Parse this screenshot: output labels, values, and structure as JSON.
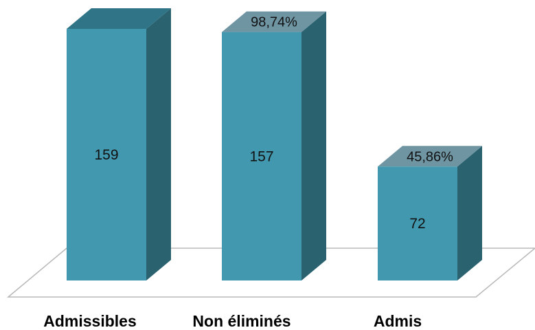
{
  "chart_data": {
    "type": "bar",
    "style": "3d-column",
    "categories": [
      "Admissibles",
      "Non éliminés",
      "Admis"
    ],
    "values": [
      159,
      157,
      72
    ],
    "percent_labels": [
      "",
      "98,74%",
      "45,86%"
    ],
    "title": "",
    "xlabel": "",
    "ylabel": "",
    "ylim": [
      0,
      159
    ],
    "grid": false,
    "legend": "none",
    "colors": {
      "front": "#4298ae",
      "side": "#2a6270",
      "top_plain": "#2f7487",
      "top_labeled": "#6f95a3",
      "floor_line": "#b8b8b8"
    }
  }
}
